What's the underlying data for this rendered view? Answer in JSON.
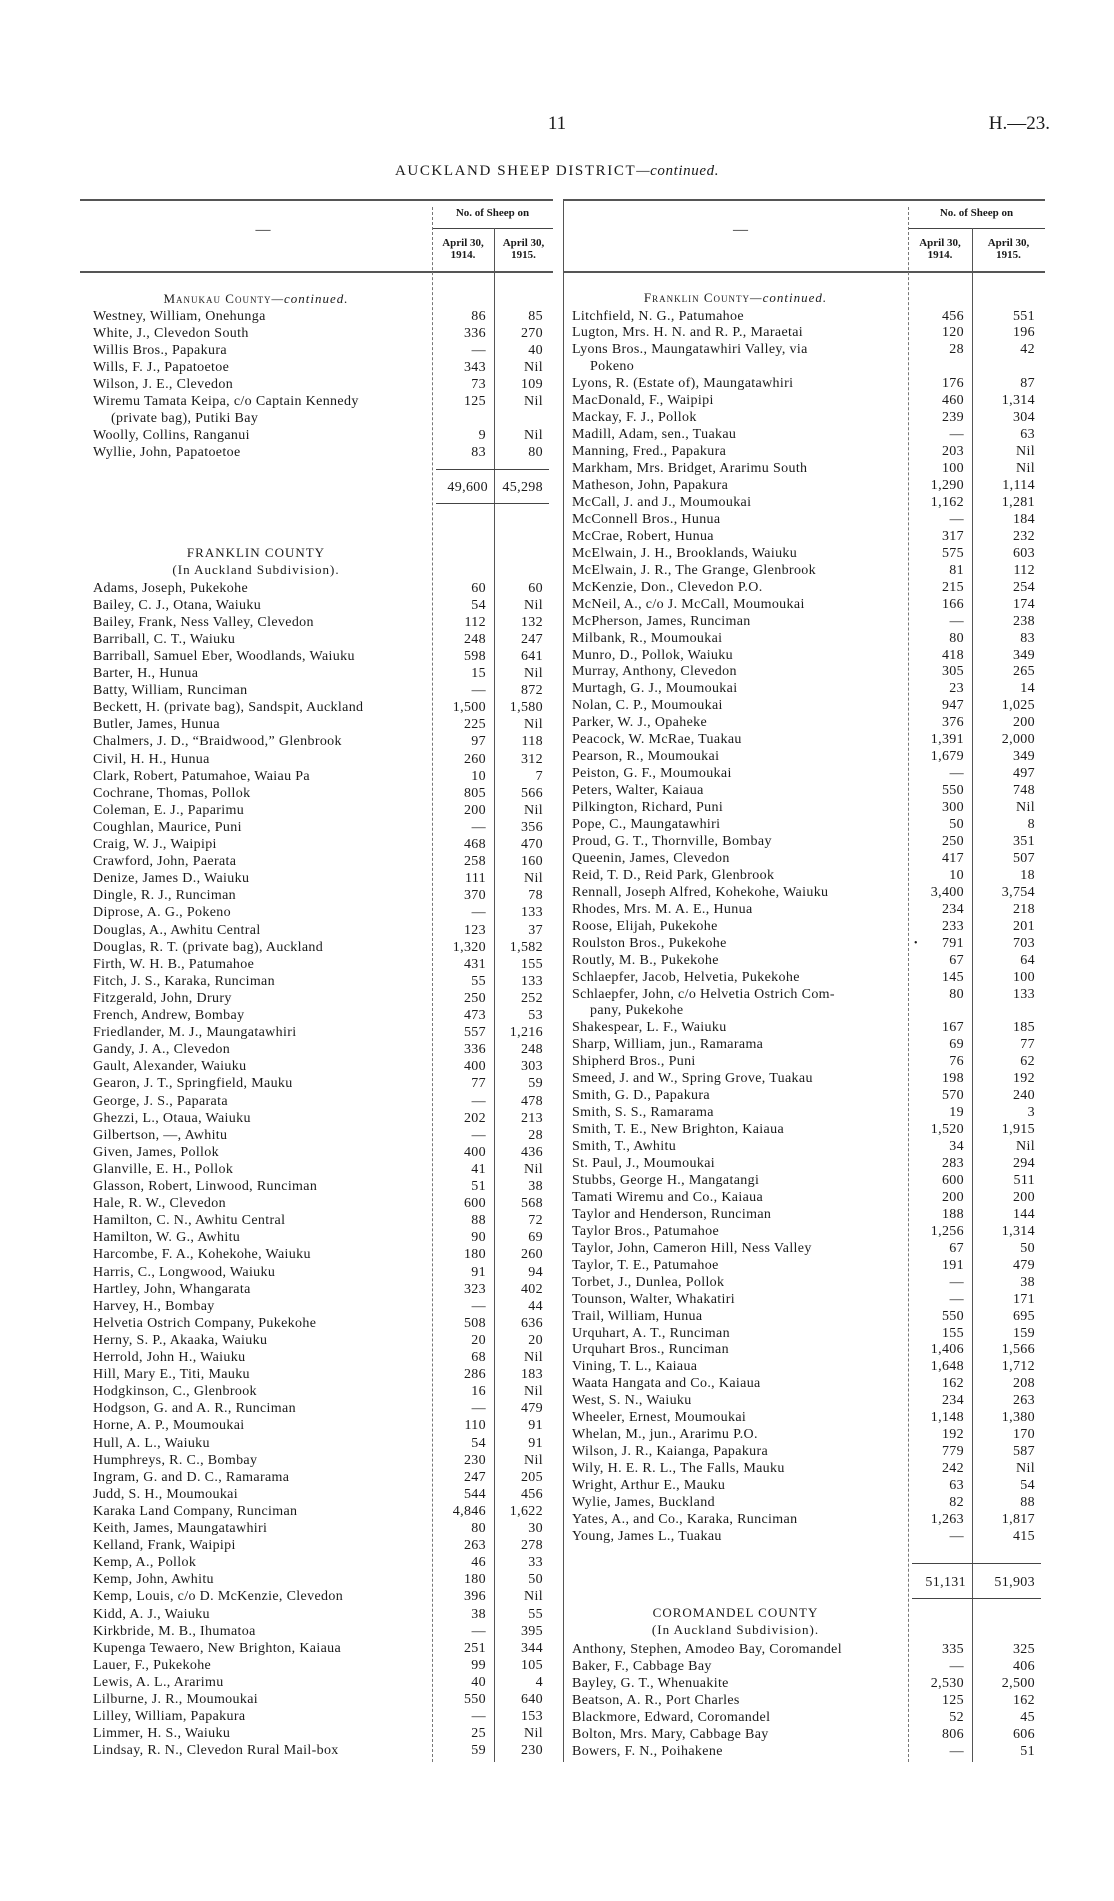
{
  "page_number": "11",
  "document_ref": "H.—23.",
  "title": {
    "main": "AUCKLAND SHEEP DISTRICT",
    "suffix": "—continued."
  },
  "table_header": {
    "name_col": "—",
    "group": "No. of Sheep on",
    "col1": [
      "April 30,",
      "1914."
    ],
    "col2": [
      "April 30,",
      "1915."
    ]
  },
  "left": {
    "section1": {
      "heading": "Manukau County",
      "heading_suffix": "—continued.",
      "rows": [
        {
          "name": "Westney, William, Onehunga",
          "v1914": "86",
          "v1915": "85"
        },
        {
          "name": "White, J., Clevedon South",
          "v1914": "336",
          "v1915": "270"
        },
        {
          "name": "Willis Bros., Papakura",
          "v1914": "—",
          "v1915": "40"
        },
        {
          "name": "Wills, F. J., Papatoetoe",
          "v1914": "343",
          "v1915": "Nil"
        },
        {
          "name": "Wilson, J. E., Clevedon",
          "v1914": "73",
          "v1915": "109"
        },
        {
          "name": "Wiremu Tamata Keipa, c/o Captain Kennedy",
          "cont": "(private bag), Putiki Bay",
          "v1914": "125",
          "v1915": "Nil"
        },
        {
          "name": "Woolly, Collins, Ranganui",
          "v1914": "9",
          "v1915": "Nil"
        },
        {
          "name": "Wyllie, John, Papatoetoe",
          "v1914": "83",
          "v1915": "80"
        }
      ],
      "total": {
        "v1914": "49,600",
        "v1915": "45,298"
      }
    },
    "section2": {
      "heading": "FRANKLIN COUNTY",
      "subheading": "(In Auckland Subdivision).",
      "rows": [
        {
          "name": "Adams, Joseph, Pukekohe",
          "v1914": "60",
          "v1915": "60"
        },
        {
          "name": "Bailey, C. J., Otana, Waiuku",
          "v1914": "54",
          "v1915": "Nil"
        },
        {
          "name": "Bailey, Frank, Ness Valley, Clevedon",
          "v1914": "112",
          "v1915": "132"
        },
        {
          "name": "Barriball, C. T., Waiuku",
          "v1914": "248",
          "v1915": "247"
        },
        {
          "name": "Barriball, Samuel Eber, Woodlands, Waiuku",
          "v1914": "598",
          "v1915": "641"
        },
        {
          "name": "Barter, H., Hunua",
          "v1914": "15",
          "v1915": "Nil"
        },
        {
          "name": "Batty, William, Runciman",
          "v1914": "—",
          "v1915": "872"
        },
        {
          "name": "Beckett, H. (private bag), Sandspit, Auckland",
          "v1914": "1,500",
          "v1915": "1,580"
        },
        {
          "name": "Butler, James, Hunua",
          "v1914": "225",
          "v1915": "Nil"
        },
        {
          "name": "Chalmers, J. D., “Braidwood,” Glenbrook",
          "v1914": "97",
          "v1915": "118"
        },
        {
          "name": "Civil, H. H., Hunua",
          "v1914": "260",
          "v1915": "312"
        },
        {
          "name": "Clark, Robert, Patumahoe, Waiau Pa",
          "v1914": "10",
          "v1915": "7"
        },
        {
          "name": "Cochrane, Thomas, Pollok",
          "v1914": "805",
          "v1915": "566"
        },
        {
          "name": "Coleman, E. J., Paparimu",
          "v1914": "200",
          "v1915": "Nil"
        },
        {
          "name": "Coughlan, Maurice, Puni",
          "v1914": "—",
          "v1915": "356"
        },
        {
          "name": "Craig, W. J., Waipipi",
          "v1914": "468",
          "v1915": "470"
        },
        {
          "name": "Crawford, John, Paerata",
          "v1914": "258",
          "v1915": "160"
        },
        {
          "name": "Denize, James D., Waiuku",
          "v1914": "111",
          "v1915": "Nil"
        },
        {
          "name": "Dingle, R. J., Runciman",
          "v1914": "370",
          "v1915": "78"
        },
        {
          "name": "Diprose, A. G., Pokeno",
          "v1914": "—",
          "v1915": "133"
        },
        {
          "name": "Douglas, A., Awhitu Central",
          "v1914": "123",
          "v1915": "37"
        },
        {
          "name": "Douglas, R. T. (private bag), Auckland",
          "v1914": "1,320",
          "v1915": "1,582"
        },
        {
          "name": "Firth, W. H. B., Patumahoe",
          "v1914": "431",
          "v1915": "155"
        },
        {
          "name": "Fitch, J. S., Karaka, Runciman",
          "v1914": "55",
          "v1915": "133"
        },
        {
          "name": "Fitzgerald, John, Drury",
          "v1914": "250",
          "v1915": "252"
        },
        {
          "name": "French, Andrew, Bombay",
          "v1914": "473",
          "v1915": "53"
        },
        {
          "name": "Friedlander, M. J., Maungatawhiri",
          "v1914": "557",
          "v1915": "1,216"
        },
        {
          "name": "Gandy, J. A., Clevedon",
          "v1914": "336",
          "v1915": "248"
        },
        {
          "name": "Gault, Alexander, Waiuku",
          "v1914": "400",
          "v1915": "303"
        },
        {
          "name": "Gearon, J. T., Springfield, Mauku",
          "v1914": "77",
          "v1915": "59"
        },
        {
          "name": "George, J. S., Paparata",
          "v1914": "—",
          "v1915": "478"
        },
        {
          "name": "Ghezzi, L., Otaua, Waiuku",
          "v1914": "202",
          "v1915": "213"
        },
        {
          "name": "Gilbertson, —, Awhitu",
          "v1914": "—",
          "v1915": "28"
        },
        {
          "name": "Given, James, Pollok",
          "v1914": "400",
          "v1915": "436"
        },
        {
          "name": "Glanville, E. H., Pollok",
          "v1914": "41",
          "v1915": "Nil"
        },
        {
          "name": "Glasson, Robert, Linwood, Runciman",
          "v1914": "51",
          "v1915": "38"
        },
        {
          "name": "Hale, R. W., Clevedon",
          "v1914": "600",
          "v1915": "568"
        },
        {
          "name": "Hamilton, C. N., Awhitu Central",
          "v1914": "88",
          "v1915": "72"
        },
        {
          "name": "Hamilton, W. G., Awhitu",
          "v1914": "90",
          "v1915": "69"
        },
        {
          "name": "Harcombe, F. A., Kohekohe, Waiuku",
          "v1914": "180",
          "v1915": "260"
        },
        {
          "name": "Harris, C., Longwood, Waiuku",
          "v1914": "91",
          "v1915": "94"
        },
        {
          "name": "Hartley, John, Whangarata",
          "v1914": "323",
          "v1915": "402"
        },
        {
          "name": "Harvey, H., Bombay",
          "v1914": "—",
          "v1915": "44"
        },
        {
          "name": "Helvetia Ostrich Company, Pukekohe",
          "v1914": "508",
          "v1915": "636"
        },
        {
          "name": "Herny, S. P., Akaaka, Waiuku",
          "v1914": "20",
          "v1915": "20"
        },
        {
          "name": "Herrold, John H., Waiuku",
          "v1914": "68",
          "v1915": "Nil"
        },
        {
          "name": "Hill, Mary E., Titi, Mauku",
          "v1914": "286",
          "v1915": "183"
        },
        {
          "name": "Hodgkinson, C., Glenbrook",
          "v1914": "16",
          "v1915": "Nil"
        },
        {
          "name": "Hodgson, G. and A. R., Runciman",
          "v1914": "—",
          "v1915": "479"
        },
        {
          "name": "Horne, A. P., Moumoukai",
          "v1914": "110",
          "v1915": "91"
        },
        {
          "name": "Hull, A. L., Waiuku",
          "v1914": "54",
          "v1915": "91"
        },
        {
          "name": "Humphreys, R. C., Bombay",
          "v1914": "230",
          "v1915": "Nil"
        },
        {
          "name": "Ingram, G. and D. C., Ramarama",
          "v1914": "247",
          "v1915": "205"
        },
        {
          "name": "Judd, S. H., Moumoukai",
          "v1914": "544",
          "v1915": "456"
        },
        {
          "name": "Karaka Land Company, Runciman",
          "v1914": "4,846",
          "v1915": "1,622"
        },
        {
          "name": "Keith, James, Maungatawhiri",
          "v1914": "80",
          "v1915": "30"
        },
        {
          "name": "Kelland, Frank, Waipipi",
          "v1914": "263",
          "v1915": "278"
        },
        {
          "name": "Kemp, A., Pollok",
          "v1914": "46",
          "v1915": "33"
        },
        {
          "name": "Kemp, John, Awhitu",
          "v1914": "180",
          "v1915": "50"
        },
        {
          "name": "Kemp, Louis, c/o D. McKenzie, Clevedon",
          "v1914": "396",
          "v1915": "Nil"
        },
        {
          "name": "Kidd, A. J., Waiuku",
          "v1914": "38",
          "v1915": "55"
        },
        {
          "name": "Kirkbride, M. B., Ihumatoa",
          "v1914": "—",
          "v1915": "395"
        },
        {
          "name": "Kupenga Tewaero, New Brighton, Kaiaua",
          "v1914": "251",
          "v1915": "344"
        },
        {
          "name": "Lauer, F., Pukekohe",
          "v1914": "99",
          "v1915": "105"
        },
        {
          "name": "Lewis, A. L., Ararimu",
          "v1914": "40",
          "v1915": "4"
        },
        {
          "name": "Lilburne, J. R., Moumoukai",
          "v1914": "550",
          "v1915": "640"
        },
        {
          "name": "Lilley, William, Papakura",
          "v1914": "—",
          "v1915": "153"
        },
        {
          "name": "Limmer, H. S., Waiuku",
          "v1914": "25",
          "v1915": "Nil"
        },
        {
          "name": "Lindsay, R. N., Clevedon Rural Mail-box",
          "v1914": "59",
          "v1915": "230"
        }
      ]
    }
  },
  "right": {
    "section1": {
      "heading": "Franklin County",
      "heading_suffix": "—continued.",
      "rows": [
        {
          "name": "Litchfield, N. G., Patumahoe",
          "v1914": "456",
          "v1915": "551"
        },
        {
          "name": "Lugton, Mrs. H. N. and R. P., Maraetai",
          "v1914": "120",
          "v1915": "196"
        },
        {
          "name": "Lyons Bros., Maungatawhiri Valley, via",
          "cont": "Pokeno",
          "v1914": "28",
          "v1915": "42"
        },
        {
          "name": "Lyons, R. (Estate of), Maungatawhiri",
          "v1914": "176",
          "v1915": "87"
        },
        {
          "name": "MacDonald, F., Waipipi",
          "v1914": "460",
          "v1915": "1,314"
        },
        {
          "name": "Mackay, F. J., Pollok",
          "v1914": "239",
          "v1915": "304"
        },
        {
          "name": "Madill, Adam, sen., Tuakau",
          "v1914": "—",
          "v1915": "63"
        },
        {
          "name": "Manning, Fred., Papakura",
          "v1914": "203",
          "v1915": "Nil"
        },
        {
          "name": "Markham, Mrs. Bridget, Ararimu South",
          "v1914": "100",
          "v1915": "Nil"
        },
        {
          "name": "Matheson, John, Papakura",
          "v1914": "1,290",
          "v1915": "1,114"
        },
        {
          "name": "McCall, J. and J., Moumoukai",
          "v1914": "1,162",
          "v1915": "1,281"
        },
        {
          "name": "McConnell Bros., Hunua",
          "v1914": "—",
          "v1915": "184"
        },
        {
          "name": "McCrae, Robert, Hunua",
          "v1914": "317",
          "v1915": "232"
        },
        {
          "name": "McElwain, J. H., Brooklands, Waiuku",
          "v1914": "575",
          "v1915": "603"
        },
        {
          "name": "McElwain, J. R., The Grange, Glenbrook",
          "v1914": "81",
          "v1915": "112"
        },
        {
          "name": "McKenzie, Don., Clevedon P.O.",
          "v1914": "215",
          "v1915": "254"
        },
        {
          "name": "McNeil, A., c/o J. McCall, Moumoukai",
          "v1914": "166",
          "v1915": "174"
        },
        {
          "name": "McPherson, James, Runciman",
          "v1914": "—",
          "v1915": "238"
        },
        {
          "name": "Milbank, R., Moumoukai",
          "v1914": "80",
          "v1915": "83"
        },
        {
          "name": "Munro, D., Pollok, Waiuku",
          "v1914": "418",
          "v1915": "349"
        },
        {
          "name": "Murray, Anthony, Clevedon",
          "v1914": "305",
          "v1915": "265"
        },
        {
          "name": "Murtagh, G. J., Moumoukai",
          "v1914": "23",
          "v1915": "14"
        },
        {
          "name": "Nolan, C. P., Moumoukai",
          "v1914": "947",
          "v1915": "1,025"
        },
        {
          "name": "Parker, W. J., Opaheke",
          "v1914": "376",
          "v1915": "200"
        },
        {
          "name": "Peacock, W. McRae, Tuakau",
          "v1914": "1,391",
          "v1915": "2,000"
        },
        {
          "name": "Pearson, R., Moumoukai",
          "v1914": "1,679",
          "v1915": "349"
        },
        {
          "name": "Peiston, G. F., Moumoukai",
          "v1914": "—",
          "v1915": "497"
        },
        {
          "name": "Peters, Walter, Kaiaua",
          "v1914": "550",
          "v1915": "748"
        },
        {
          "name": "Pilkington, Richard, Puni",
          "v1914": "300",
          "v1915": "Nil"
        },
        {
          "name": "Pope, C., Maungatawhiri",
          "v1914": "50",
          "v1915": "8"
        },
        {
          "name": "Proud, G. T., Thornville, Bombay",
          "v1914": "250",
          "v1915": "351"
        },
        {
          "name": "Queenin, James, Clevedon",
          "v1914": "417",
          "v1915": "507"
        },
        {
          "name": "Reid, T. D., Reid Park, Glenbrook",
          "v1914": "10",
          "v1915": "18"
        },
        {
          "name": "Rennall, Joseph Alfred, Kohekohe, Waiuku",
          "v1914": "3,400",
          "v1915": "3,754"
        },
        {
          "name": "Rhodes, Mrs. M. A. E., Hunua",
          "v1914": "234",
          "v1915": "218"
        },
        {
          "name": "Roose, Elijah, Pukekohe",
          "v1914": "233",
          "v1915": "201"
        },
        {
          "name": "Roulston Bros., Pukekohe",
          "v1914": "791",
          "v1915": "703",
          "mark": "•"
        },
        {
          "name": "Routly, M. B., Pukekohe",
          "v1914": "67",
          "v1915": "64"
        },
        {
          "name": "Schlaepfer, Jacob, Helvetia, Pukekohe",
          "v1914": "145",
          "v1915": "100"
        },
        {
          "name": "Schlaepfer, John, c/o Helvetia Ostrich Com-",
          "cont": "pany, Pukekohe",
          "v1914": "80",
          "v1915": "133"
        },
        {
          "name": "Shakespear, L. F., Waiuku",
          "v1914": "167",
          "v1915": "185"
        },
        {
          "name": "Sharp, William, jun., Ramarama",
          "v1914": "69",
          "v1915": "77"
        },
        {
          "name": "Shipherd Bros., Puni",
          "v1914": "76",
          "v1915": "62"
        },
        {
          "name": "Smeed, J. and W., Spring Grove, Tuakau",
          "v1914": "198",
          "v1915": "192"
        },
        {
          "name": "Smith, G. D., Papakura",
          "v1914": "570",
          "v1915": "240"
        },
        {
          "name": "Smith, S. S., Ramarama",
          "v1914": "19",
          "v1915": "3"
        },
        {
          "name": "Smith, T. E., New Brighton, Kaiaua",
          "v1914": "1,520",
          "v1915": "1,915"
        },
        {
          "name": "Smith, T., Awhitu",
          "v1914": "34",
          "v1915": "Nil"
        },
        {
          "name": "St. Paul, J., Moumoukai",
          "v1914": "283",
          "v1915": "294"
        },
        {
          "name": "Stubbs, George H., Mangatangi",
          "v1914": "600",
          "v1915": "511"
        },
        {
          "name": "Tamati Wiremu and Co., Kaiaua",
          "v1914": "200",
          "v1915": "200"
        },
        {
          "name": "Taylor and Henderson, Runciman",
          "v1914": "188",
          "v1915": "144"
        },
        {
          "name": "Taylor Bros., Patumahoe",
          "v1914": "1,256",
          "v1915": "1,314"
        },
        {
          "name": "Taylor, John, Cameron Hill, Ness Valley",
          "v1914": "67",
          "v1915": "50"
        },
        {
          "name": "Taylor, T. E., Patumahoe",
          "v1914": "191",
          "v1915": "479"
        },
        {
          "name": "Torbet, J., Dunlea, Pollok",
          "v1914": "—",
          "v1915": "38"
        },
        {
          "name": "Tounson, Walter, Whakatiri",
          "v1914": "—",
          "v1915": "171"
        },
        {
          "name": "Trail, William, Hunua",
          "v1914": "550",
          "v1915": "695"
        },
        {
          "name": "Urquhart, A. T., Runciman",
          "v1914": "155",
          "v1915": "159"
        },
        {
          "name": "Urquhart Bros., Runciman",
          "v1914": "1,406",
          "v1915": "1,566"
        },
        {
          "name": "Vining, T. L., Kaiaua",
          "v1914": "1,648",
          "v1915": "1,712"
        },
        {
          "name": "Waata Hangata and Co., Kaiaua",
          "v1914": "162",
          "v1915": "208"
        },
        {
          "name": "West, S. N., Waiuku",
          "v1914": "234",
          "v1915": "263"
        },
        {
          "name": "Wheeler, Ernest, Moumoukai",
          "v1914": "1,148",
          "v1915": "1,380"
        },
        {
          "name": "Whelan, M., jun., Ararimu P.O.",
          "v1914": "192",
          "v1915": "170"
        },
        {
          "name": "Wilson, J. R., Kaianga, Papakura",
          "v1914": "779",
          "v1915": "587"
        },
        {
          "name": "Wily, H. E. R. L., The Falls, Mauku",
          "v1914": "242",
          "v1915": "Nil"
        },
        {
          "name": "Wright, Arthur E., Mauku",
          "v1914": "63",
          "v1915": "54"
        },
        {
          "name": "Wylie, James, Buckland",
          "v1914": "82",
          "v1915": "88"
        },
        {
          "name": "Yates, A., and Co., Karaka, Runciman",
          "v1914": "1,263",
          "v1915": "1,817"
        },
        {
          "name": "Young, James L., Tuakau",
          "v1914": "—",
          "v1915": "415"
        }
      ],
      "total": {
        "v1914": "51,131",
        "v1915": "51,903"
      }
    },
    "section2": {
      "heading": "COROMANDEL COUNTY",
      "subheading": "(In Auckland Subdivision).",
      "rows": [
        {
          "name": "Anthony, Stephen, Amodeo Bay, Coromandel",
          "v1914": "335",
          "v1915": "325"
        },
        {
          "name": "Baker, F., Cabbage Bay",
          "v1914": "—",
          "v1915": "406"
        },
        {
          "name": "Bayley, G. T., Whenuakite",
          "v1914": "2,530",
          "v1915": "2,500"
        },
        {
          "name": "Beatson, A. R., Port Charles",
          "v1914": "125",
          "v1915": "162"
        },
        {
          "name": "Blackmore, Edward, Coromandel",
          "v1914": "52",
          "v1915": "45"
        },
        {
          "name": "Bolton, Mrs. Mary, Cabbage Bay",
          "v1914": "806",
          "v1915": "606"
        },
        {
          "name": "Bowers, F. N., Poihakene",
          "v1914": "—",
          "v1915": "51"
        }
      ]
    }
  }
}
